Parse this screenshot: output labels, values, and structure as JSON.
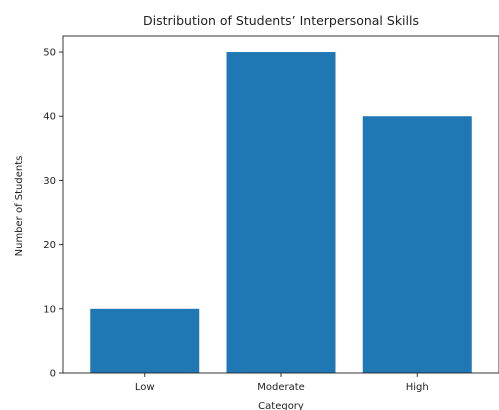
{
  "chart_data": {
    "type": "bar",
    "title": "Distribution of Students’ Interpersonal Skills",
    "xlabel": "Category",
    "ylabel": "Number of Students",
    "categories": [
      "Low",
      "Moderate",
      "High"
    ],
    "values": [
      10,
      50,
      40
    ],
    "ylim": [
      0,
      52.5
    ],
    "yticks": [
      0,
      10,
      20,
      30,
      40,
      50
    ],
    "bar_color": "#1f77b4",
    "grid": false,
    "legend": "none"
  }
}
